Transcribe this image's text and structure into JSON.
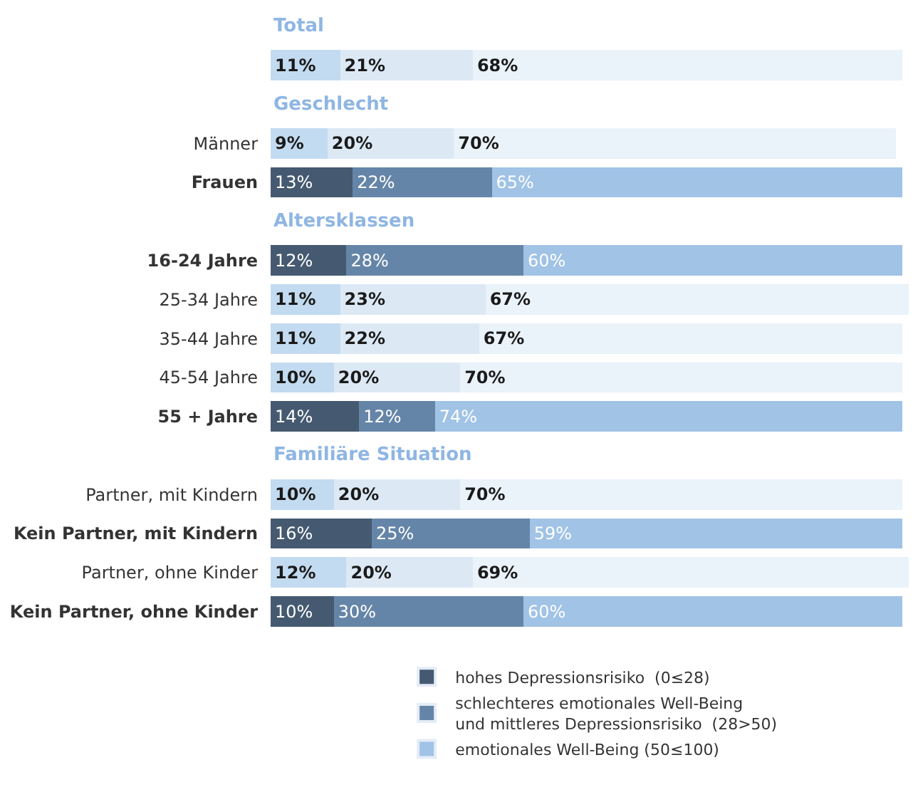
{
  "chart_data": {
    "type": "bar",
    "orientation": "horizontal",
    "stacked": true,
    "categories": [
      "Total",
      null,
      "Geschlecht",
      "Männer",
      "Frauen",
      "Altersklassen",
      "16-24 Jahre",
      "25-34 Jahre",
      "35-44 Jahre",
      "45-54 Jahre",
      "55 + Jahre",
      "Familiäre Situation",
      "Partner, mit Kindern",
      "Kein Partner, mit Kindern",
      "Partner, ohne Kinder",
      "Kein Partner, ohne Kinder"
    ],
    "xlim": [
      0,
      101
    ],
    "tick_labels": "y",
    "legend": "bottom",
    "series": [
      {
        "name": "hohes Depressionsrisiko  (0≤28)",
        "color": "#455a70",
        "values": [
          null,
          11,
          null,
          9,
          13,
          null,
          12,
          11,
          11,
          10,
          14,
          null,
          10,
          16,
          12,
          10
        ],
        "value_labels": [
          null,
          "11%",
          null,
          "9%",
          "13%",
          null,
          "12%",
          "11%",
          "11%",
          "10%",
          "14%",
          null,
          "10%",
          "16%",
          "12%",
          "10%"
        ],
        "colors": [
          null,
          "#c3dbf0",
          null,
          "#c3dbf0",
          "#455a70",
          null,
          "#455a70",
          "#c3dbf0",
          "#c3dbf0",
          "#c3dbf0",
          "#455a70",
          null,
          "#c3dbf0",
          "#455a70",
          "#c3dbf0",
          "#455a70"
        ]
      },
      {
        "name": "schlechteres emotionales Well-Being\nund mittleres Depressionsrisiko  (28>50)",
        "color": "#6585a8",
        "values": [
          null,
          21,
          null,
          20,
          22,
          null,
          28,
          23,
          22,
          20,
          12,
          null,
          20,
          25,
          20,
          30
        ],
        "value_labels": [
          null,
          "21%",
          null,
          "20%",
          "22%",
          null,
          "28%",
          "23%",
          "22%",
          "20%",
          "12%",
          null,
          "20%",
          "25%",
          "20%",
          "30%"
        ],
        "colors": [
          null,
          "#dce9f5",
          null,
          "#dce9f5",
          "#6585a8",
          null,
          "#6585a8",
          "#dce9f5",
          "#dce9f5",
          "#dce9f5",
          "#6585a8",
          null,
          "#dce9f5",
          "#6585a8",
          "#dce9f5",
          "#6585a8"
        ]
      },
      {
        "name": "emotionales Well-Being (50≤100)",
        "color": "#a0c3e6",
        "values": [
          null,
          68,
          null,
          70,
          65,
          null,
          60,
          67,
          67,
          70,
          74,
          null,
          70,
          59,
          69,
          60
        ],
        "value_labels": [
          null,
          "68%",
          null,
          "70%",
          "65%",
          null,
          "60%",
          "67%",
          "67%",
          "70%",
          "74%",
          null,
          "70%",
          "59%",
          "69%",
          "60%"
        ],
        "colors": [
          null,
          "#eaf2fa",
          null,
          "#eaf2fa",
          "#a0c3e6",
          null,
          "#a0c3e6",
          "#eaf2fa",
          "#eaf2fa",
          "#eaf2fa",
          "#a0c3e6",
          null,
          "#eaf2fa",
          "#a0c3e6",
          "#eaf2fa",
          "#a0c3e6"
        ]
      }
    ]
  }
}
